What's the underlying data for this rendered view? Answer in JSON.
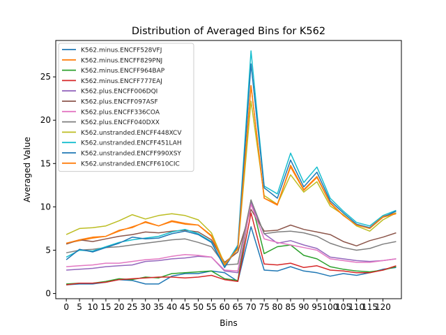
{
  "chart_data": {
    "type": "line",
    "title": "Distribution of Averaged Bins for K562",
    "xlabel": "Bins",
    "ylabel": "Averaged Value",
    "xlim": [
      -4,
      127
    ],
    "ylim": [
      -0.6,
      29.2
    ],
    "xticks": [
      0,
      5,
      10,
      15,
      20,
      25,
      30,
      35,
      40,
      45,
      50,
      55,
      60,
      65,
      70,
      75,
      80,
      85,
      90,
      95,
      100,
      105,
      110,
      115,
      120
    ],
    "xtick_labels": [
      "0",
      "5",
      "10",
      "15",
      "20",
      "25",
      "30",
      "35",
      "40",
      "45",
      "50",
      "55",
      "60",
      "65",
      "70",
      "75",
      "80",
      "85",
      "90",
      "95",
      "100",
      "105",
      "110",
      "115",
      "120"
    ],
    "yticks": [
      0,
      5,
      10,
      15,
      20,
      25
    ],
    "ytick_labels": [
      "0",
      "5",
      "10",
      "15",
      "20",
      "25"
    ],
    "grid": false,
    "legend_position": "top-left",
    "x_step": 5,
    "series": [
      {
        "name": "K562.minus.ENCFF528VFJ",
        "color": "#1f77b4",
        "values": [
          1.0,
          1.1,
          1.1,
          1.3,
          1.6,
          1.5,
          1.1,
          1.1,
          2.0,
          2.3,
          2.3,
          2.6,
          2.4,
          1.4,
          7.7,
          2.7,
          2.6,
          3.1,
          2.6,
          2.4,
          2.0,
          2.3,
          2.1,
          2.4,
          2.8,
          3.0
        ]
      },
      {
        "name": "K562.minus.ENCFF829PNJ",
        "color": "#ff7f0e",
        "values": [
          5.8,
          6.1,
          6.4,
          6.6,
          7.2,
          7.7,
          8.2,
          7.8,
          8.3,
          8.0,
          7.9,
          6.6,
          3.2,
          5.3,
          24.0,
          11.0,
          10.2,
          14.8,
          12.0,
          13.5,
          10.5,
          9.0,
          7.9,
          7.6,
          8.9,
          9.3
        ]
      },
      {
        "name": "K562.minus.ENCFF964BAP",
        "color": "#2ca02c",
        "values": [
          1.1,
          1.2,
          1.2,
          1.4,
          1.7,
          1.6,
          1.9,
          1.8,
          2.3,
          2.4,
          2.5,
          2.6,
          1.7,
          1.5,
          10.8,
          4.6,
          5.4,
          5.6,
          4.4,
          4.0,
          3.1,
          2.8,
          2.6,
          2.5,
          2.7,
          3.1
        ]
      },
      {
        "name": "K562.minus.ENCFF777EAJ",
        "color": "#d62728",
        "values": [
          1.0,
          1.2,
          1.2,
          1.3,
          1.6,
          1.7,
          1.8,
          1.9,
          1.9,
          1.8,
          1.9,
          2.1,
          1.6,
          1.4,
          9.3,
          3.4,
          3.3,
          3.5,
          3.0,
          3.2,
          2.7,
          2.6,
          2.4,
          2.4,
          2.7,
          3.2
        ]
      },
      {
        "name": "K562.plus.ENCFF006DQI",
        "color": "#9467bd",
        "values": [
          2.7,
          2.8,
          2.9,
          3.1,
          3.2,
          3.3,
          3.7,
          3.8,
          4.0,
          4.1,
          4.3,
          4.2,
          2.6,
          2.4,
          10.5,
          6.9,
          5.8,
          6.1,
          5.6,
          5.2,
          4.2,
          4.0,
          3.8,
          3.7,
          3.8,
          4.0
        ]
      },
      {
        "name": "K562.plus.ENCFF097ASF",
        "color": "#8c564b",
        "values": [
          5.7,
          6.2,
          6.0,
          6.3,
          6.6,
          6.8,
          7.1,
          7.0,
          7.2,
          7.3,
          7.1,
          6.2,
          3.6,
          4.8,
          9.7,
          7.2,
          7.3,
          7.9,
          7.4,
          7.1,
          6.8,
          6.0,
          5.5,
          6.1,
          6.5,
          7.0
        ]
      },
      {
        "name": "K562.plus.ENCFF336COA",
        "color": "#e377c2",
        "values": [
          3.1,
          3.2,
          3.3,
          3.5,
          3.5,
          3.7,
          3.9,
          4.0,
          4.3,
          4.5,
          4.4,
          4.2,
          2.7,
          2.6,
          10.3,
          6.3,
          5.9,
          5.6,
          5.3,
          5.0,
          4.0,
          3.8,
          3.6,
          3.6,
          3.8,
          4.0
        ]
      },
      {
        "name": "K562.plus.ENCFF040DXX",
        "color": "#7f7f7f",
        "values": [
          4.7,
          5.0,
          5.1,
          5.3,
          5.4,
          5.6,
          5.8,
          6.0,
          6.2,
          6.3,
          5.9,
          5.4,
          3.3,
          3.4,
          10.8,
          6.9,
          7.1,
          7.2,
          7.0,
          6.6,
          5.8,
          5.3,
          5.0,
          5.2,
          5.7,
          6.0
        ]
      },
      {
        "name": "K562.unstranded.ENCFF448XCV",
        "color": "#bcbd22",
        "values": [
          6.8,
          7.5,
          7.6,
          7.8,
          8.4,
          9.1,
          8.6,
          9.0,
          9.2,
          9.0,
          8.5,
          7.0,
          3.4,
          5.1,
          22.2,
          11.3,
          10.3,
          13.7,
          11.7,
          12.9,
          10.1,
          9.1,
          7.8,
          7.2,
          8.5,
          9.3
        ]
      },
      {
        "name": "K562.unstranded.ENCFF451LAH",
        "color": "#17becf",
        "values": [
          4.2,
          5.0,
          4.9,
          5.4,
          5.9,
          6.2,
          6.4,
          6.6,
          7.1,
          7.4,
          6.9,
          6.0,
          3.1,
          5.6,
          28.0,
          12.4,
          11.5,
          16.2,
          12.8,
          14.6,
          11.0,
          9.5,
          8.2,
          7.8,
          9.0,
          9.6
        ]
      },
      {
        "name": "K562.unstranded.ENCFF990XSY",
        "color": "#1f77b4",
        "values": [
          3.9,
          5.1,
          4.8,
          5.3,
          5.8,
          6.5,
          6.3,
          6.4,
          6.9,
          7.2,
          6.8,
          5.9,
          3.0,
          5.4,
          26.5,
          12.2,
          11.0,
          15.4,
          12.3,
          14.0,
          10.7,
          9.3,
          8.0,
          7.6,
          8.8,
          9.5
        ]
      },
      {
        "name": "K562.unstranded.ENCFF610CIC",
        "color": "#ff7f0e",
        "values": [
          5.8,
          6.2,
          6.5,
          6.6,
          7.3,
          7.6,
          8.3,
          7.8,
          8.4,
          8.1,
          7.9,
          6.7,
          3.3,
          5.2,
          24.0,
          11.0,
          10.3,
          14.6,
          11.9,
          13.4,
          10.4,
          9.0,
          7.9,
          7.5,
          8.8,
          9.2
        ]
      }
    ]
  }
}
